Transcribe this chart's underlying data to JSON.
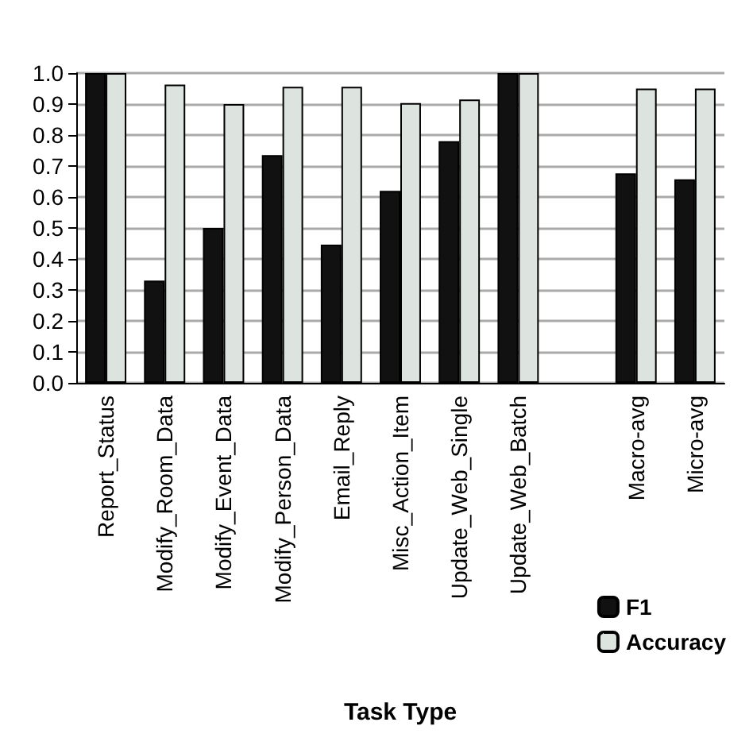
{
  "chart_data": {
    "type": "bar",
    "xlabel": "Task Type",
    "categories": [
      "Report_Status",
      "Modify_Room_Data",
      "Modify_Event_Data",
      "Modify_Person_Data",
      "Email_Reply",
      "Misc_Action_Item",
      "Update_Web_Single",
      "Update_Web_Batch",
      null,
      "Macro-avg",
      "Micro-avg"
    ],
    "series": [
      {
        "name": "F1",
        "color": "#111111",
        "values": [
          1.0,
          0.33,
          0.5,
          0.735,
          0.446,
          0.62,
          0.78,
          1.0,
          null,
          0.676,
          0.657
        ]
      },
      {
        "name": "Accuracy",
        "color": "#dde3de",
        "values": [
          1.0,
          0.963,
          0.9,
          0.956,
          0.956,
          0.903,
          0.915,
          1.0,
          null,
          0.95,
          0.95
        ]
      }
    ],
    "ylim": [
      0,
      1
    ],
    "yticks": [
      {
        "value": 0,
        "label": "0.0"
      },
      {
        "value": 0.1,
        "label": "0.1"
      },
      {
        "value": 0.2,
        "label": "0.2"
      },
      {
        "value": 0.3,
        "label": "0.3"
      },
      {
        "value": 0.4,
        "label": "0.4"
      },
      {
        "value": 0.5,
        "label": "0.5"
      },
      {
        "value": 0.6,
        "label": "0.6"
      },
      {
        "value": 0.7,
        "label": "0.7"
      },
      {
        "value": 0.8,
        "label": "0.8"
      },
      {
        "value": 0.9,
        "label": "0.9"
      },
      {
        "value": 1,
        "label": "1.0"
      }
    ],
    "grid": "y",
    "legend": "bottom right"
  }
}
